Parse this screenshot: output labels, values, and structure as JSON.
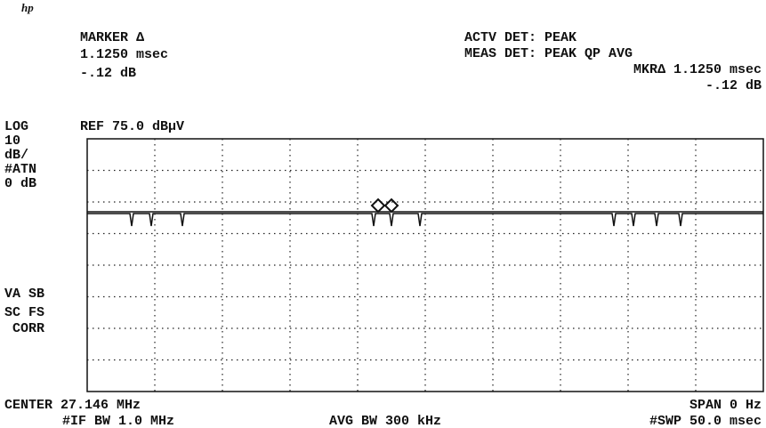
{
  "logo": "hp",
  "marker": {
    "title": "MARKER ∆",
    "time": "1.1250 msec",
    "level": "-.12 dB"
  },
  "detector": {
    "active": "ACTV DET: PEAK",
    "measure": "MEAS DET: PEAK QP AVG",
    "marker_time": "MKR∆ 1.1250 msec",
    "marker_level": "-.12 dB"
  },
  "scale": {
    "mode": "LOG",
    "reference": "REF 75.0 dBµV",
    "division": "10",
    "division_unit": "dB/",
    "attenuation_label": "#ATN",
    "attenuation": "0 dB"
  },
  "flags": [
    "VA SB",
    "SC FS",
    "CORR"
  ],
  "footer": {
    "center": "CENTER 27.146 MHz",
    "span": "SPAN 0 Hz",
    "if_bw": "#IF BW 1.0 MHz",
    "avg_bw": "AVG BW 300 kHz",
    "sweep": "#SWP 50.0 msec"
  }
}
